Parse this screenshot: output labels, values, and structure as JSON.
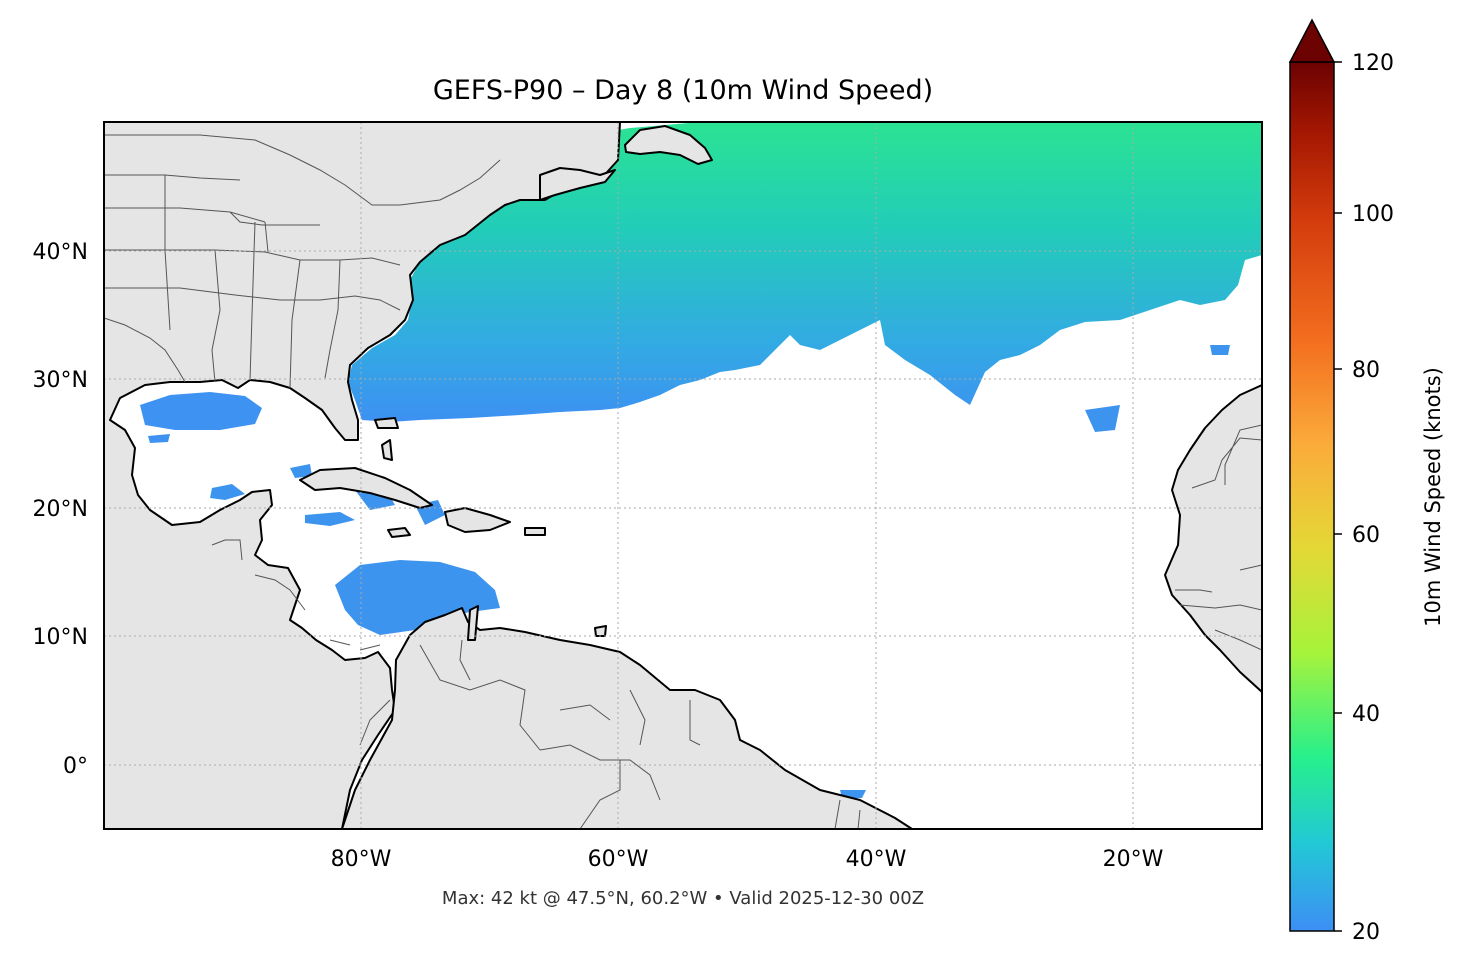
{
  "map": {
    "title": "GEFS-P90 – Day 8 (10m Wind Speed)",
    "footnote": "Max: 42 kt @ 47.5°N, 60.2°W • Valid 2025-12-30 00Z",
    "extent": {
      "lon_min": -100,
      "lon_max": -10,
      "lat_min": -5,
      "lat_max": 50
    },
    "lat_ticks": [
      {
        "value": 40,
        "label": "40°N"
      },
      {
        "value": 30,
        "label": "30°N"
      },
      {
        "value": 20,
        "label": "20°N"
      },
      {
        "value": 10,
        "label": "10°N"
      },
      {
        "value": 0,
        "label": "0°"
      }
    ],
    "lon_ticks": [
      {
        "value": -80,
        "label": "80°W"
      },
      {
        "value": -60,
        "label": "60°W"
      },
      {
        "value": -40,
        "label": "40°W"
      },
      {
        "value": -20,
        "label": "20°W"
      }
    ],
    "grid": true,
    "colors": {
      "land": "#e5e5e5",
      "ocean": "#ffffff",
      "coastline": "#000000",
      "borders": "#555555"
    }
  },
  "colorbar": {
    "label": "10m Wind Speed (knots)",
    "ticks": [
      20,
      40,
      60,
      80,
      100,
      120
    ],
    "min": 20,
    "max": 120,
    "extend": "max",
    "colors": [
      "#3d8ef5",
      "#22c8d6",
      "#27f08c",
      "#a6f33b",
      "#e4d836",
      "#fbab3a",
      "#f36e1f",
      "#d33b0c",
      "#a31702",
      "#6c0202"
    ]
  }
}
